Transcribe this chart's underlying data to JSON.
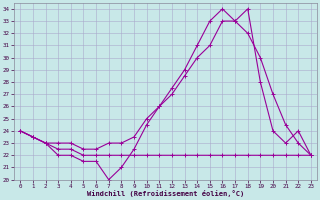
{
  "xlabel": "Windchill (Refroidissement éolien,°C)",
  "background_color": "#c8e8e8",
  "grid_color": "#aaaacc",
  "line_color": "#990099",
  "xlim": [
    -0.5,
    23.5
  ],
  "ylim": [
    20,
    34.5
  ],
  "x_ticks": [
    0,
    1,
    2,
    3,
    4,
    5,
    6,
    7,
    8,
    9,
    10,
    11,
    12,
    13,
    14,
    15,
    16,
    17,
    18,
    19,
    20,
    21,
    22,
    23
  ],
  "y_ticks": [
    20,
    21,
    22,
    23,
    24,
    25,
    26,
    27,
    28,
    29,
    30,
    31,
    32,
    33,
    34
  ],
  "line1_x": [
    0,
    1,
    2,
    3,
    4,
    5,
    6,
    7,
    8,
    9,
    10,
    11,
    12,
    13,
    14,
    15,
    16,
    17,
    18,
    19,
    20,
    21,
    22,
    23
  ],
  "line1_y": [
    24,
    23.5,
    23,
    22,
    22,
    21.5,
    21.5,
    20,
    21,
    22.5,
    24.5,
    26,
    27.5,
    29,
    31,
    33,
    34,
    33,
    34,
    28,
    24,
    23,
    24,
    22
  ],
  "line2_x": [
    0,
    1,
    2,
    3,
    4,
    5,
    6,
    7,
    8,
    9,
    10,
    11,
    12,
    13,
    14,
    15,
    16,
    17,
    18,
    19,
    20,
    21,
    22,
    23
  ],
  "line2_y": [
    24,
    23.5,
    23,
    23,
    23,
    22.5,
    22.5,
    23,
    23,
    23.5,
    25,
    26,
    27,
    28.5,
    30,
    31,
    33,
    33,
    32,
    30,
    27,
    24.5,
    23,
    22
  ],
  "line3_x": [
    0,
    1,
    2,
    3,
    4,
    5,
    6,
    7,
    8,
    9,
    10,
    11,
    12,
    13,
    14,
    15,
    16,
    17,
    18,
    19,
    20,
    21,
    22,
    23
  ],
  "line3_y": [
    24,
    23.5,
    23,
    22.5,
    22.5,
    22,
    22,
    22,
    22,
    22,
    22,
    22,
    22,
    22,
    22,
    22,
    22,
    22,
    22,
    22,
    22,
    22,
    22,
    22
  ],
  "marker": "+",
  "markersize": 3,
  "linewidth": 0.8
}
